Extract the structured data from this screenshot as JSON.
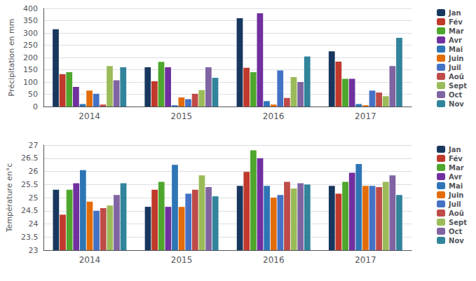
{
  "chart_data": [
    {
      "type": "bar",
      "categories": [
        "2014",
        "2015",
        "2016",
        "2017"
      ],
      "ylabel": "Précipitation en mm",
      "ylim": [
        0,
        400
      ],
      "yticks": [
        0,
        50,
        100,
        150,
        200,
        250,
        300,
        350,
        400
      ],
      "grid": true,
      "legend": "right",
      "series": [
        {
          "name": "Jan",
          "color": "#17375e",
          "values": [
            315,
            160,
            360,
            225
          ]
        },
        {
          "name": "Fév",
          "color": "#c0392b",
          "values": [
            132,
            103,
            158,
            183
          ]
        },
        {
          "name": "Mar",
          "color": "#4ea72c",
          "values": [
            140,
            182,
            140,
            113
          ]
        },
        {
          "name": "Avr",
          "color": "#7030a0",
          "values": [
            80,
            160,
            380,
            113
          ]
        },
        {
          "name": "Mai",
          "color": "#2e75b6",
          "values": [
            10,
            5,
            22,
            10
          ]
        },
        {
          "name": "Juin",
          "color": "#e36c09",
          "values": [
            65,
            37,
            8,
            5
          ]
        },
        {
          "name": "Juil",
          "color": "#4472c4",
          "values": [
            52,
            30,
            147,
            65
          ]
        },
        {
          "name": "Aoû",
          "color": "#be4b48",
          "values": [
            8,
            52,
            35,
            57
          ]
        },
        {
          "name": "Sept",
          "color": "#9bbb59",
          "values": [
            165,
            67,
            120,
            42
          ]
        },
        {
          "name": "Oct",
          "color": "#8064a2",
          "values": [
            107,
            160,
            100,
            165
          ]
        },
        {
          "name": "Nov",
          "color": "#31849b",
          "values": [
            160,
            117,
            204,
            280
          ]
        }
      ]
    },
    {
      "type": "bar",
      "categories": [
        "2014",
        "2015",
        "2016",
        "2017"
      ],
      "ylabel": "Température en°c",
      "ylim": [
        23,
        27
      ],
      "yticks": [
        23,
        23.5,
        24,
        24.5,
        25,
        25.5,
        26,
        26.5,
        27
      ],
      "grid": true,
      "legend": "right",
      "series": [
        {
          "name": "Jan",
          "color": "#17375e",
          "values": [
            25.3,
            24.65,
            25.45,
            25.45
          ]
        },
        {
          "name": "Fév",
          "color": "#c0392b",
          "values": [
            24.35,
            25.3,
            25.98,
            25.15
          ]
        },
        {
          "name": "Mar",
          "color": "#4ea72c",
          "values": [
            25.3,
            25.6,
            26.8,
            25.6
          ]
        },
        {
          "name": "Avr",
          "color": "#7030a0",
          "values": [
            25.55,
            24.65,
            26.5,
            25.95
          ]
        },
        {
          "name": "Mai",
          "color": "#2e75b6",
          "values": [
            26.05,
            26.25,
            25.45,
            26.28
          ]
        },
        {
          "name": "Juin",
          "color": "#e36c09",
          "values": [
            24.85,
            24.65,
            25.0,
            25.45
          ]
        },
        {
          "name": "Juil",
          "color": "#4472c4",
          "values": [
            24.5,
            25.15,
            25.1,
            25.45
          ]
        },
        {
          "name": "Aoû",
          "color": "#be4b48",
          "values": [
            24.6,
            25.3,
            25.6,
            25.4
          ]
        },
        {
          "name": "Sept",
          "color": "#9bbb59",
          "values": [
            24.7,
            25.85,
            25.35,
            25.6
          ]
        },
        {
          "name": "Oct",
          "color": "#8064a2",
          "values": [
            25.1,
            25.4,
            25.55,
            25.85
          ]
        },
        {
          "name": "Nov",
          "color": "#31849b",
          "values": [
            25.55,
            25.05,
            25.5,
            25.1
          ]
        }
      ]
    }
  ]
}
